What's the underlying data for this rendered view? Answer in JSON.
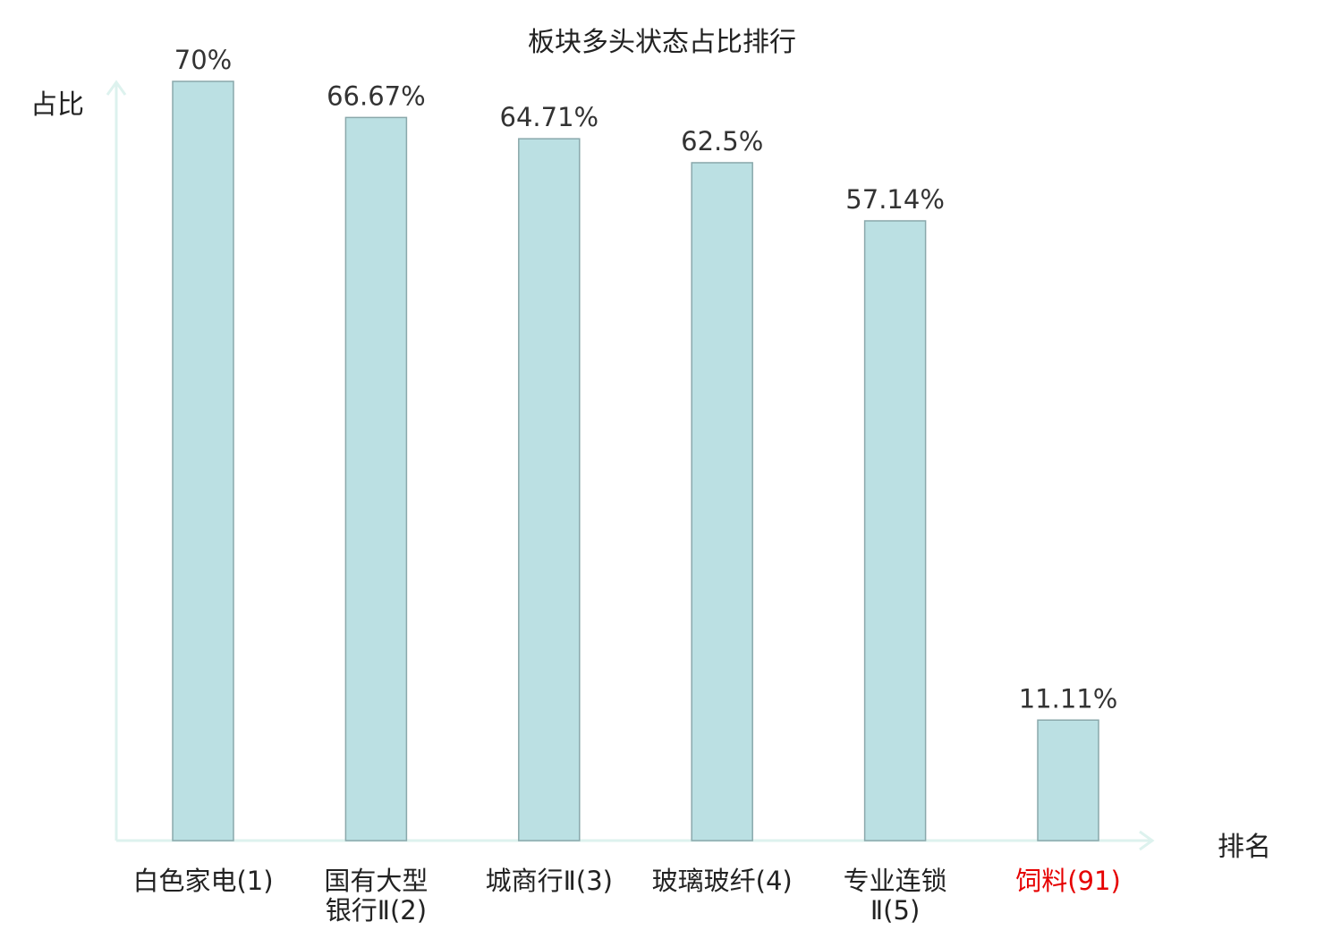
{
  "chart_data": {
    "type": "bar",
    "title": "板块多头状态占比排行",
    "ylabel": "占比",
    "xlabel": "排名",
    "ylim": [
      0,
      75
    ],
    "grid": false,
    "categories": [
      [
        "白色家电(1)"
      ],
      [
        "国有大型",
        "银行Ⅱ(2)"
      ],
      [
        "城商行Ⅱ(3)"
      ],
      [
        "玻璃玻纤(4)"
      ],
      [
        "专业连锁",
        "Ⅱ(5)"
      ],
      [
        "饲料(91)"
      ]
    ],
    "values": [
      70,
      66.67,
      64.71,
      62.5,
      57.14,
      11.11
    ],
    "value_labels": [
      "70%",
      "66.67%",
      "64.71%",
      "62.5%",
      "57.14%",
      "11.11%"
    ],
    "highlight_index": 5,
    "colors": {
      "bar_fill": "#bbe0e3",
      "bar_stroke": "#8aa8ab",
      "axis": "#ddf2ee",
      "highlight_label": "#e60000",
      "label": "#333333"
    }
  }
}
